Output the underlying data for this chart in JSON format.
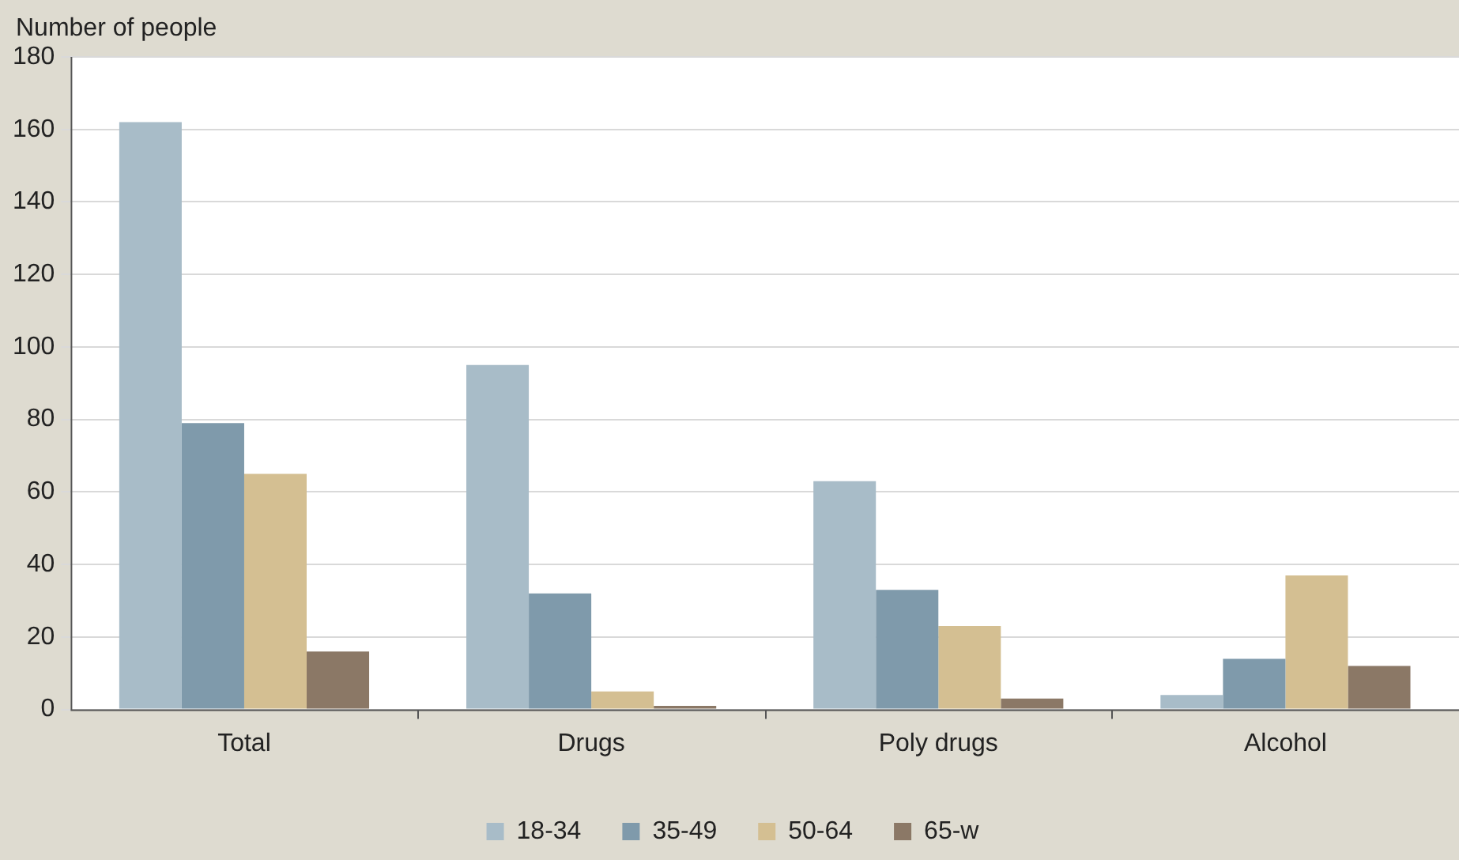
{
  "chart_data": {
    "type": "bar",
    "ylabel": "Number of people",
    "categories": [
      "Total",
      "Drugs",
      "Poly drugs",
      "Alcohol"
    ],
    "series": [
      {
        "name": "18-34",
        "color": "#a8bcc8",
        "values": [
          162,
          95,
          63,
          4
        ]
      },
      {
        "name": "35-49",
        "color": "#7f9aab",
        "values": [
          79,
          32,
          33,
          14
        ]
      },
      {
        "name": "50-64",
        "color": "#d4bf92",
        "values": [
          65,
          5,
          23,
          37
        ]
      },
      {
        "name": "65-w",
        "color": "#8b7866",
        "values": [
          16,
          1,
          3,
          12
        ]
      }
    ],
    "ylim": [
      0,
      180
    ],
    "yticks": [
      0,
      20,
      40,
      60,
      80,
      100,
      120,
      140,
      160,
      180
    ],
    "grid": "y",
    "legend": "bottom"
  }
}
